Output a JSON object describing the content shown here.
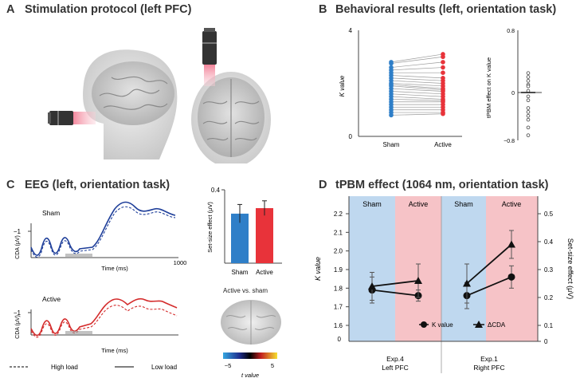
{
  "panels": {
    "a": {
      "letter": "A",
      "title": "Stimulation protocol (left PFC)"
    },
    "b": {
      "letter": "B",
      "title": "Behavioral results (left, orientation task)"
    },
    "c": {
      "letter": "C",
      "title": "EEG (left, orientation task)"
    },
    "d": {
      "letter": "D",
      "title": "tPBM effect (1064 nm, orientation task)"
    }
  },
  "panel_b": {
    "ylabel": "K value",
    "y_top": "4",
    "y_bottom": "0",
    "categories": [
      "Sham",
      "Active"
    ],
    "colors": {
      "sham": "#2f7fc8",
      "active": "#e8333a"
    },
    "sham_values": [
      2.8,
      2.75,
      2.6,
      2.5,
      2.4,
      2.3,
      2.2,
      2.1,
      2.0,
      1.95,
      1.9,
      1.8,
      1.7,
      1.6,
      1.5,
      1.4,
      1.3,
      1.2,
      1.1,
      1.0,
      0.9,
      0.8
    ],
    "active_values": [
      3.1,
      3.0,
      2.8,
      2.6,
      2.4,
      2.2,
      2.1,
      2.0,
      1.9,
      1.8,
      1.75,
      1.7,
      1.6,
      1.5,
      1.4,
      1.35,
      1.3,
      1.2,
      1.1,
      1.0,
      0.9,
      0.85
    ],
    "effect_ylabel": "tPBM effect on K value",
    "effect_ticks": [
      "0.8",
      "0",
      "−0.8"
    ],
    "effect_values": [
      0.25,
      0.2,
      0.15,
      0.1,
      0.08,
      0.02,
      -0.05,
      -0.1,
      -0.2,
      -0.25,
      -0.3,
      -0.35,
      -0.45,
      -0.55
    ],
    "effect_mean": 0.0
  },
  "panel_c": {
    "sham_label": "Sham",
    "active_label": "Active",
    "cda_label": "CDA (μV)",
    "tick_minus1": "−1",
    "xlabel": "Time (ms)",
    "x_end": "1000",
    "legend_high": "High load",
    "legend_low": "Low load",
    "sham_color": "#1f3f9a",
    "active_color": "#d42b2b",
    "bar_ylabel": "Set-size effect (μV)",
    "bar_ytick": "0.4",
    "bar_categories": [
      "Sham",
      "Active"
    ],
    "bar_values": [
      0.27,
      0.3
    ],
    "bar_errors": [
      0.05,
      0.04
    ],
    "bar_ymax": 0.4,
    "map_title": "Active vs. sham",
    "colorbar_min": "−5",
    "colorbar_max": "5",
    "colorbar_label": "t value"
  },
  "chart_data": {
    "type": "line",
    "title": "tPBM effect (1064 nm, orientation task)",
    "ylabel_left": "K value",
    "ylabel_right": "Set-size effect (μV)",
    "ylim_left": [
      1.6,
      2.2
    ],
    "ylim_right": [
      0.1,
      0.5
    ],
    "left_ticks": [
      "2.2",
      "2.1",
      "2.0",
      "1.9",
      "1.8",
      "1.7",
      "1.6"
    ],
    "left_zero": "0",
    "right_ticks": [
      "0.5",
      "0.4",
      "0.3",
      "0.2",
      "0.1",
      "0"
    ],
    "regions": [
      {
        "sham_label": "Sham",
        "active_label": "Active",
        "exp": "Exp.4",
        "site": "Left PFC"
      },
      {
        "sham_label": "Sham",
        "active_label": "Active",
        "exp": "Exp.1",
        "site": "Right PFC"
      }
    ],
    "series": [
      {
        "name": "K value",
        "marker": "circle",
        "values": [
          [
            1.79,
            1.76
          ],
          [
            1.76,
            1.86
          ]
        ],
        "errors": [
          [
            0.07,
            0.03
          ],
          [
            0.07,
            0.06
          ]
        ]
      },
      {
        "name": "ΔCDA",
        "marker": "triangle",
        "values": [
          [
            0.24,
            0.26
          ],
          [
            0.25,
            0.39
          ]
        ],
        "errors": [
          [
            0.05,
            0.06
          ],
          [
            0.07,
            0.05
          ]
        ]
      }
    ],
    "colors": {
      "sham_bg": "#bfd8ef",
      "active_bg": "#f6c3c7"
    }
  }
}
